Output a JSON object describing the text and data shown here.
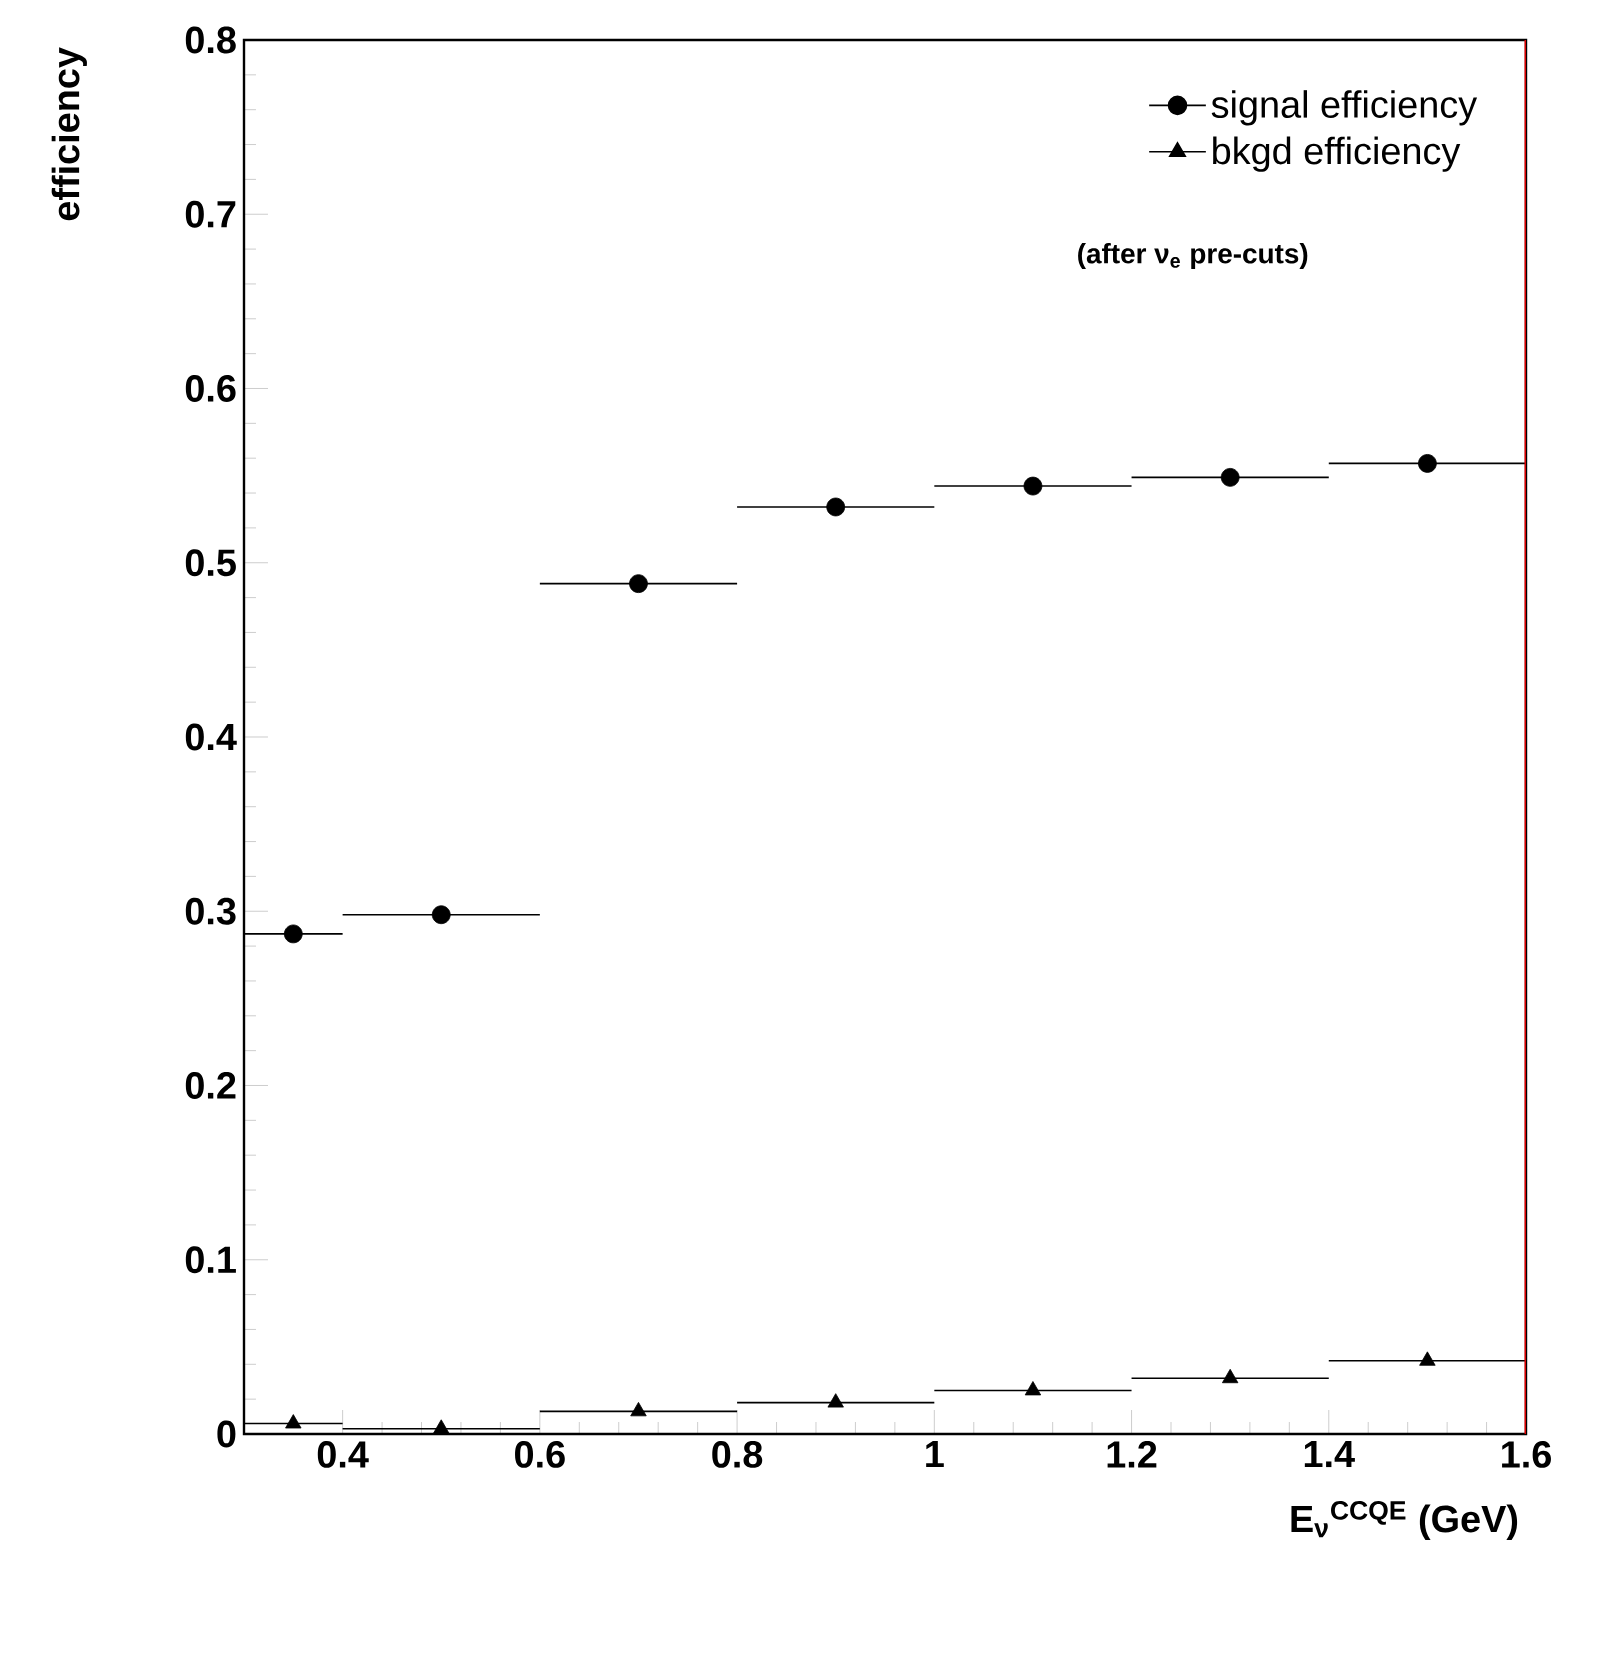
{
  "chart_data": {
    "type": "scatter",
    "xlabel": "E$_{ν}$$^{CCQE}$ (GeV)",
    "ylabel": "efficiency",
    "x": [
      0.35,
      0.5,
      0.7,
      0.9,
      1.1,
      1.3,
      1.5
    ],
    "series": [
      {
        "name": "signal efficiency",
        "color": "#000000",
        "marker": "circle",
        "values": [
          0.287,
          0.298,
          0.488,
          0.532,
          0.544,
          0.549,
          0.557
        ],
        "xerrors": [
          0.05,
          0.1,
          0.1,
          0.1,
          0.1,
          0.1,
          0.1
        ]
      },
      {
        "name": "bkgd efficiency",
        "color": "#000000",
        "marker": "triangle",
        "values": [
          0.006,
          0.003,
          0.013,
          0.018,
          0.025,
          0.032,
          0.042
        ],
        "xerrors": [
          0.05,
          0.1,
          0.1,
          0.1,
          0.1,
          0.1,
          0.1
        ]
      }
    ],
    "xlim": [
      0.3,
      1.6
    ],
    "xticks": [
      0.4,
      0.6,
      0.8,
      1,
      1.2,
      1.4,
      1.6
    ],
    "ylim": [
      0,
      0.8
    ],
    "yticks": [
      0,
      0.1,
      0.2,
      0.3,
      0.4,
      0.5,
      0.6,
      0.7,
      0.8
    ],
    "ref_lines": [
      {
        "axis": "x",
        "value": 1.6,
        "color": "#dd0000"
      }
    ],
    "annotations": [
      "(after ν$_{e}$ pre-cuts)"
    ],
    "legend": "top right",
    "grid": false
  }
}
